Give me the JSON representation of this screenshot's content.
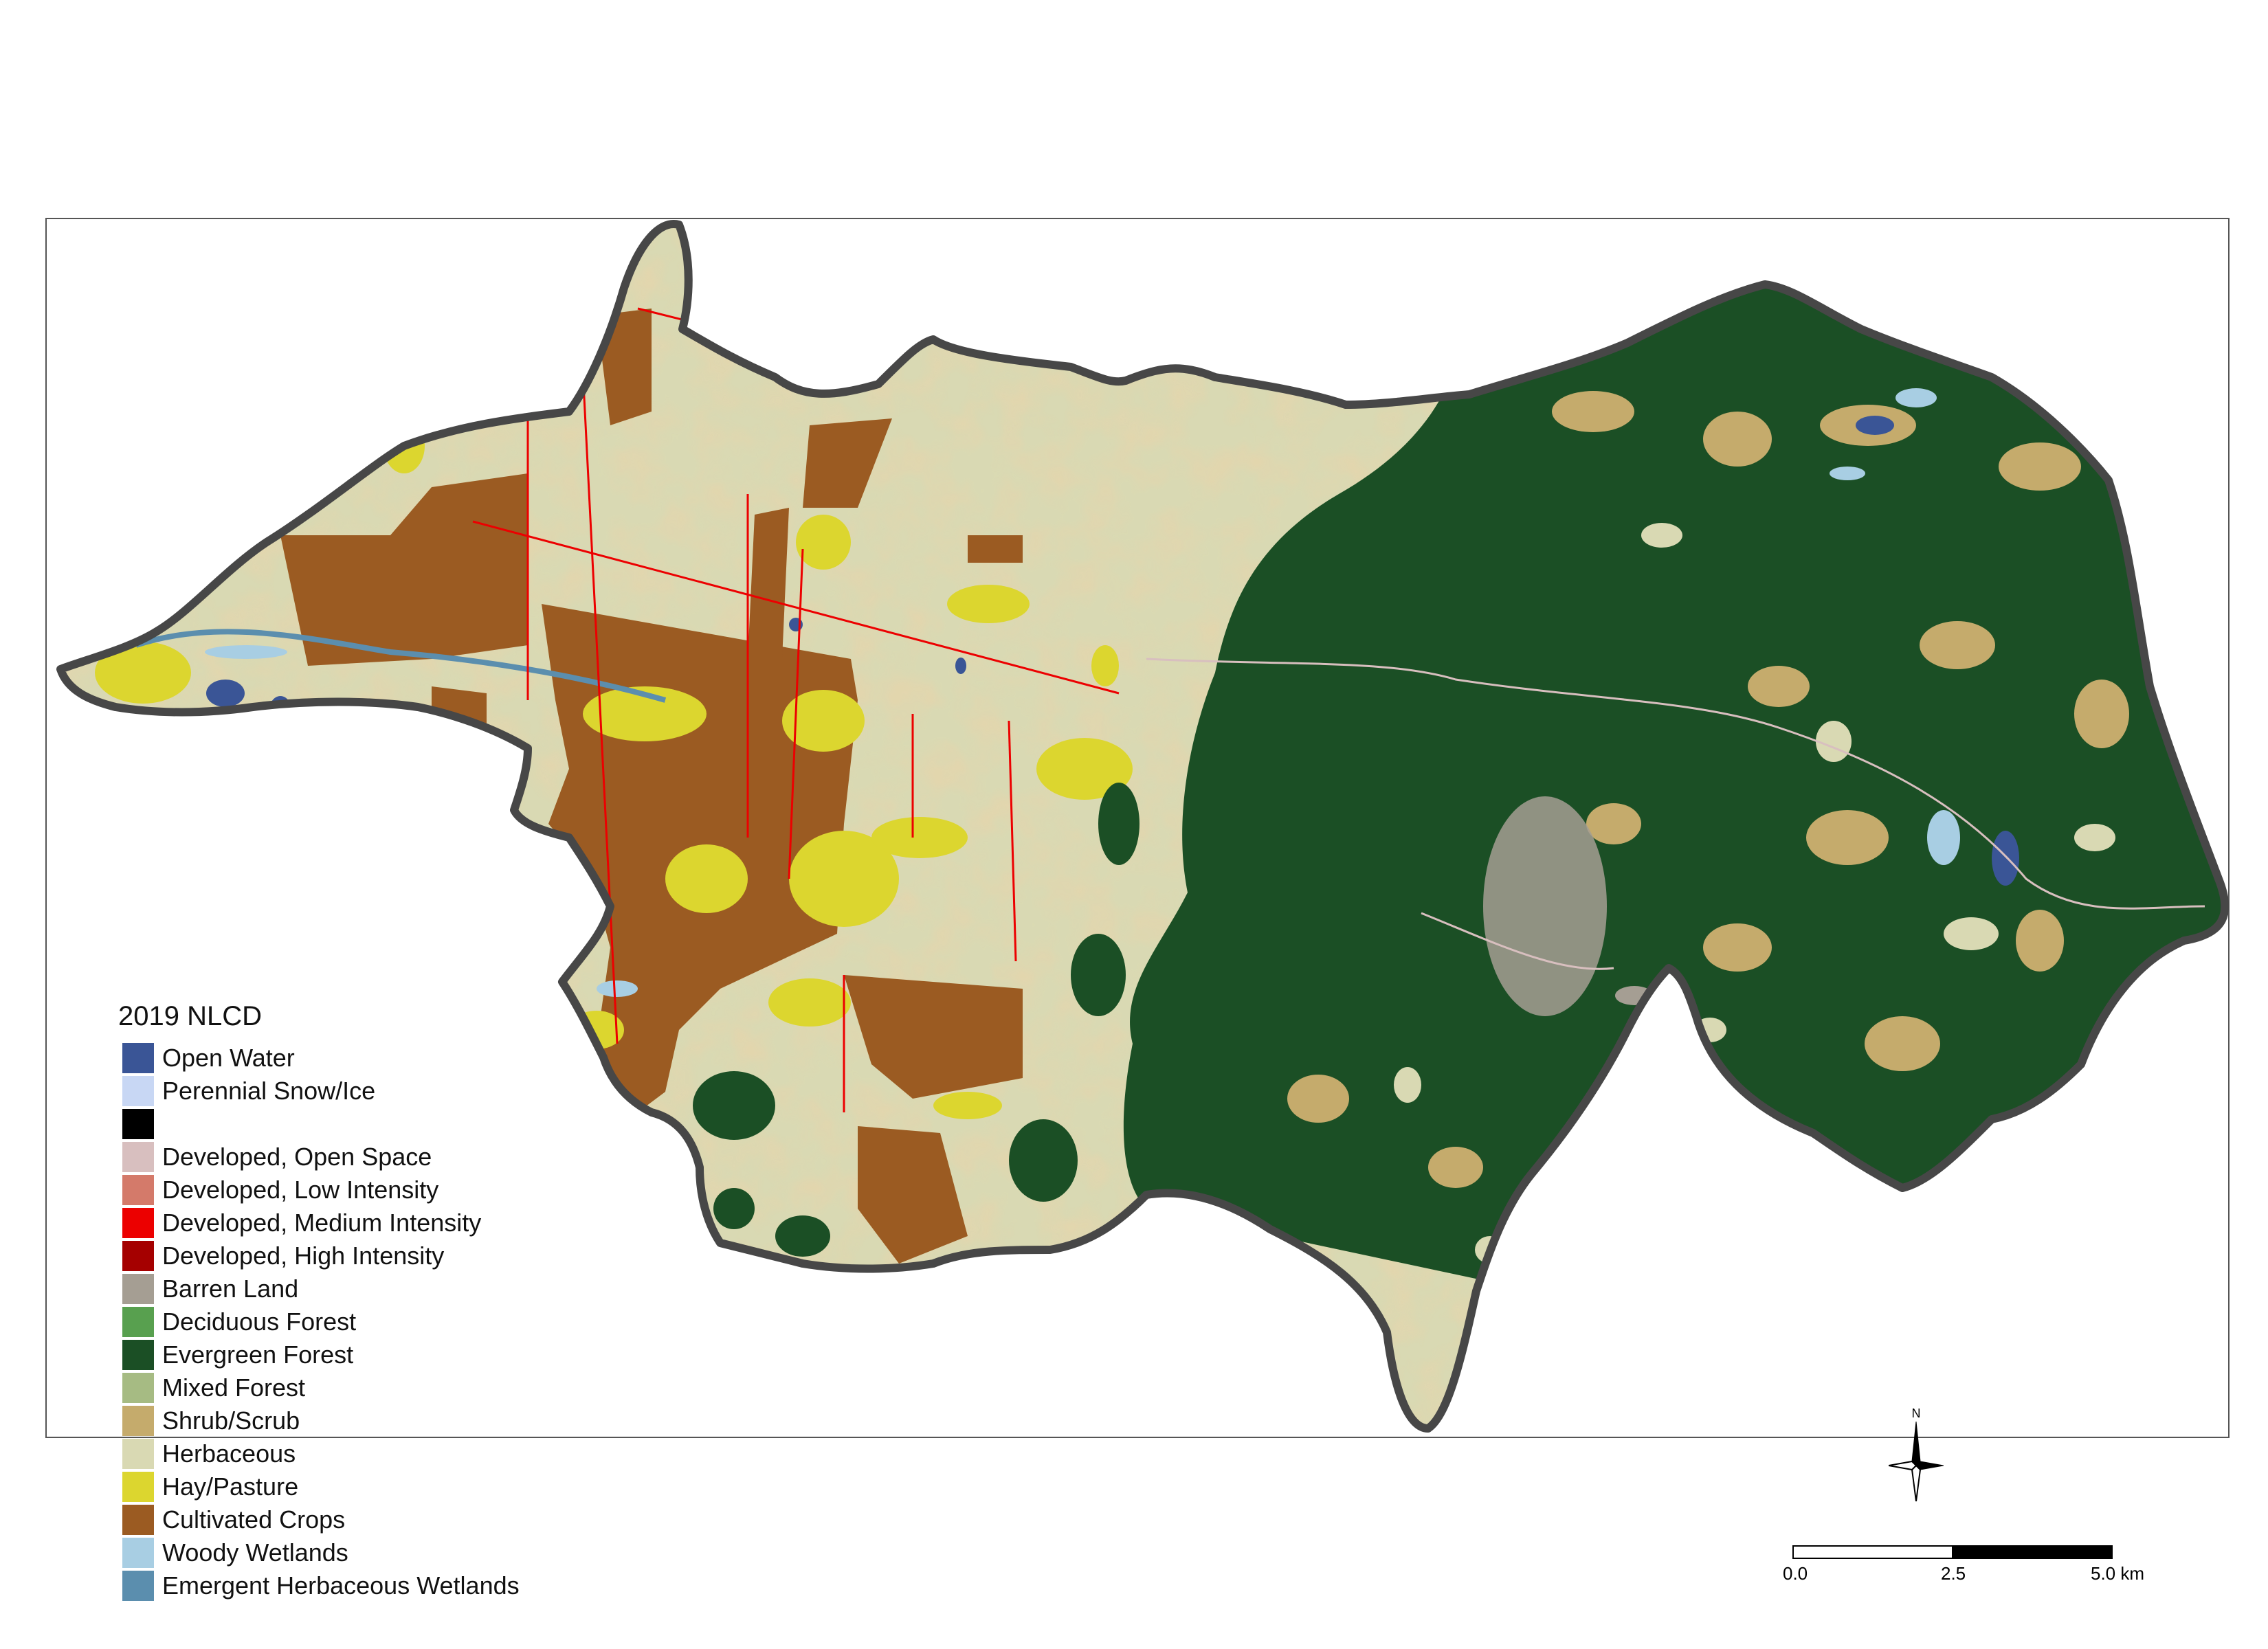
{
  "map": {
    "legend_title": "2019 NLCD",
    "legend": [
      {
        "label": "Open Water",
        "color": "#3a5596"
      },
      {
        "label": "Perennial Snow/Ice",
        "color": "#c8d7f4"
      },
      {
        "label": "",
        "color": "#000000"
      },
      {
        "label": "Developed, Open Space",
        "color": "#d8bfbf"
      },
      {
        "label": "Developed, Low Intensity",
        "color": "#d47a6a"
      },
      {
        "label": "Developed, Medium Intensity",
        "color": "#ec0000"
      },
      {
        "label": "Developed, High Intensity",
        "color": "#a50000"
      },
      {
        "label": "Barren Land",
        "color": "#a59e93"
      },
      {
        "label": "Deciduous Forest",
        "color": "#58a04f"
      },
      {
        "label": "Evergreen Forest",
        "color": "#1b4f25"
      },
      {
        "label": "Mixed Forest",
        "color": "#a6bb83"
      },
      {
        "label": "Shrub/Scrub",
        "color": "#c5ab6c"
      },
      {
        "label": "Herbaceous",
        "color": "#d9d9b3"
      },
      {
        "label": "Hay/Pasture",
        "color": "#dcd62f"
      },
      {
        "label": "Cultivated Crops",
        "color": "#9b5b22"
      },
      {
        "label": "Woody Wetlands",
        "color": "#a8cee3"
      },
      {
        "label": "Emergent Herbaceous Wetlands",
        "color": "#5b8eae"
      }
    ],
    "scale_bar": {
      "labels": [
        "0.0",
        "2.5",
        "5.0 km"
      ]
    },
    "north_label": "N",
    "boundary_color": "#474747"
  }
}
